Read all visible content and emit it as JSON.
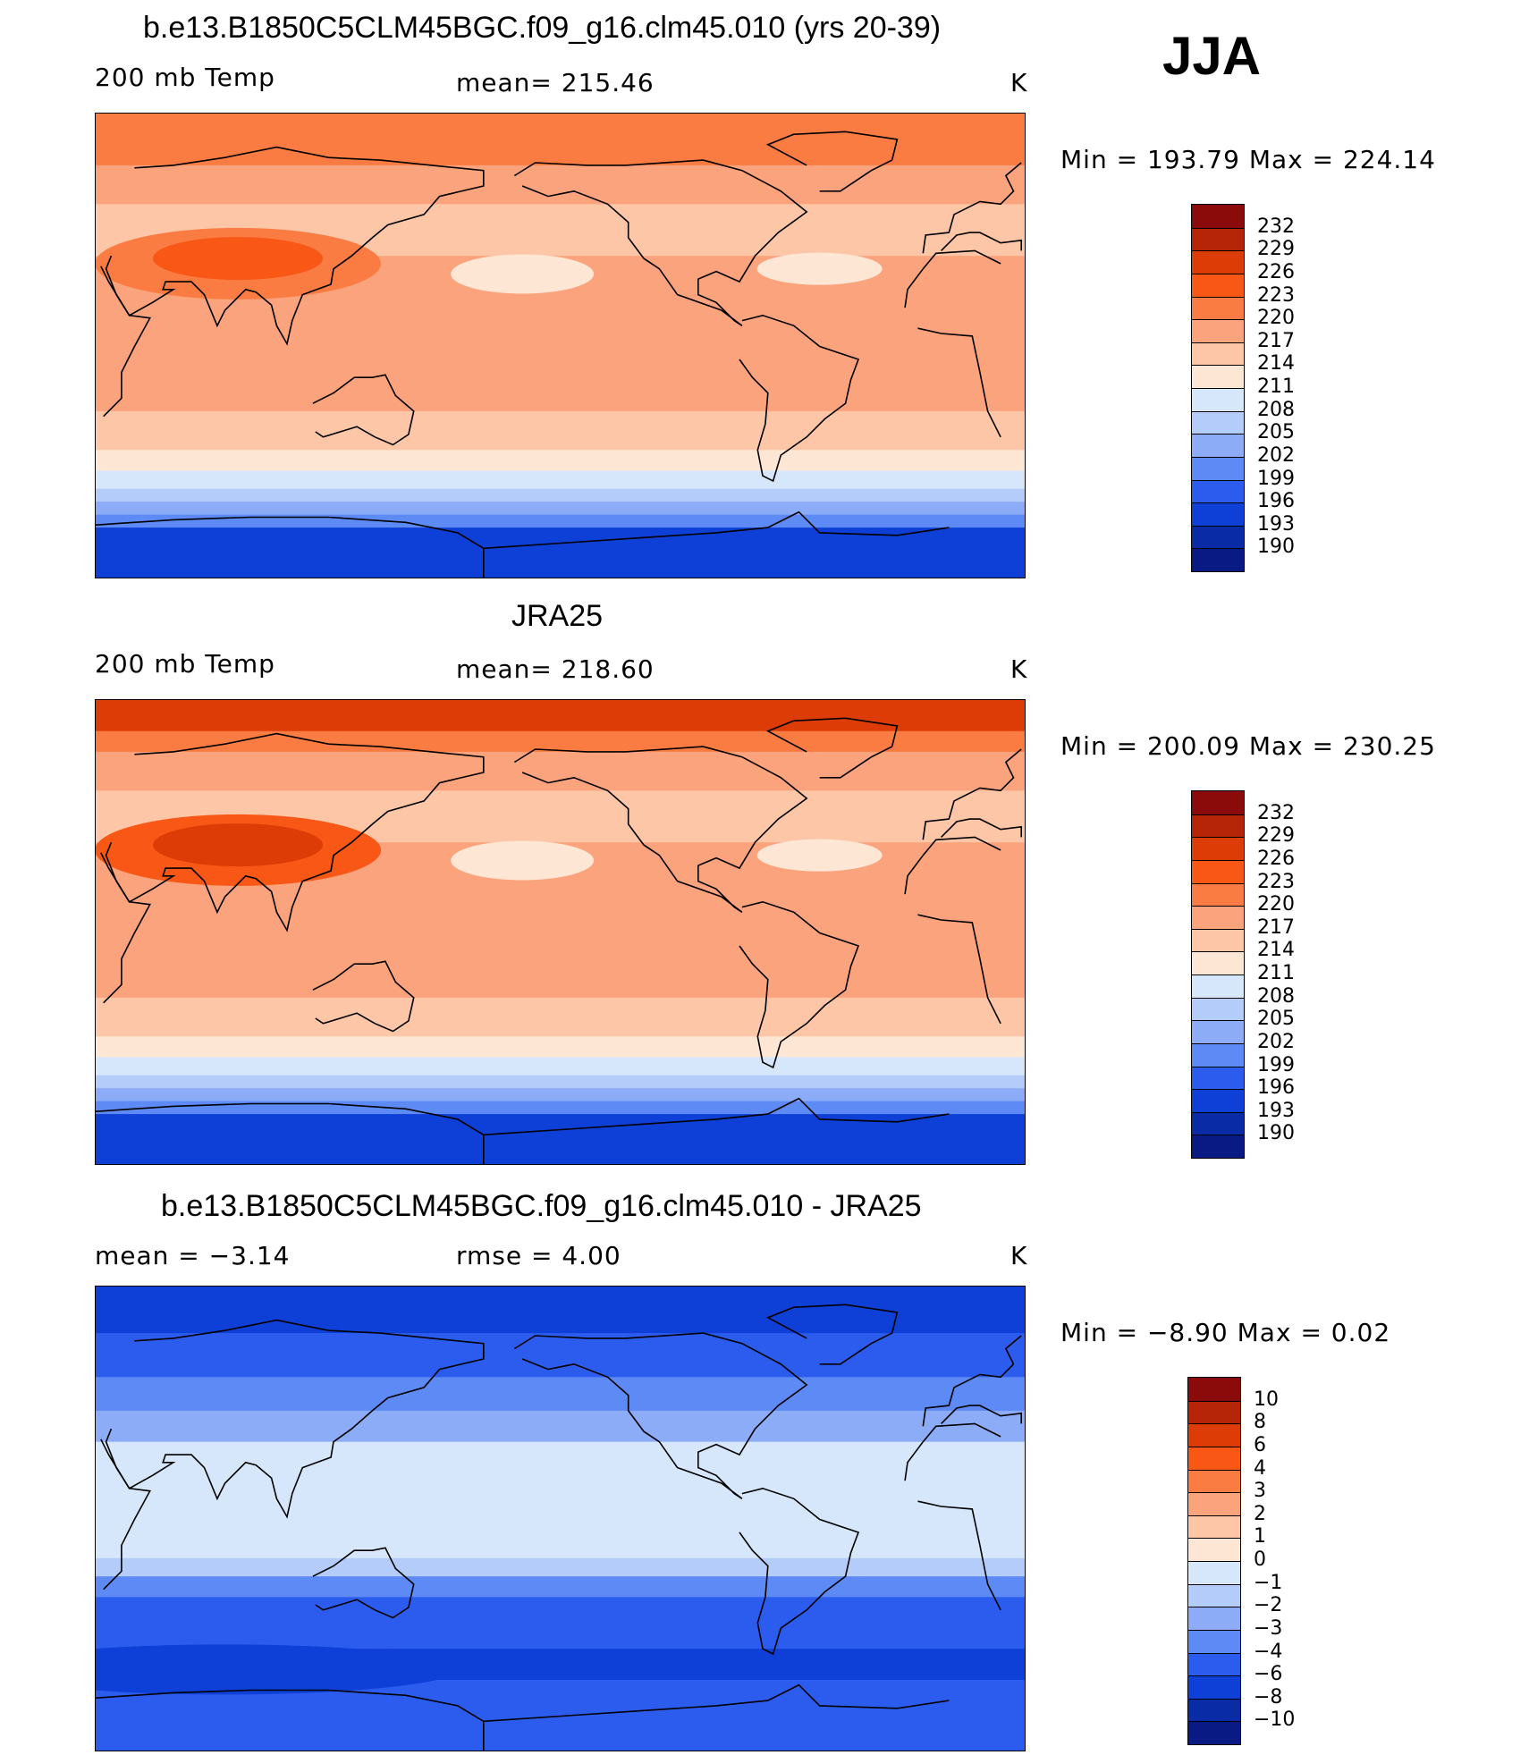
{
  "season": "JJA",
  "panels": [
    {
      "title": "b.e13.B1850C5CLM45BGC.f09_g16.clm45.010 (yrs 20-39)",
      "left_label": "200 mb Temp",
      "center_label": "mean= 215.46",
      "units": "K",
      "minmax": "Min = 193.79 Max = 224.14",
      "colorbar_labels": [
        "232",
        "229",
        "226",
        "223",
        "220",
        "217",
        "214",
        "211",
        "208",
        "205",
        "202",
        "199",
        "196",
        "193",
        "190"
      ],
      "colorbar_colors": [
        "#8b0b0b",
        "#b72508",
        "#dd3c06",
        "#f85715",
        "#fa7c42",
        "#fba37c",
        "#fcc6a7",
        "#fde6d4",
        "#d6e6fb",
        "#b4ccfa",
        "#8cacf8",
        "#5d8af4",
        "#2c5cee",
        "#0e3fd6",
        "#0a2ba6",
        "#0a1a84"
      ],
      "field_type": "temperature",
      "antarctic_shade": 0
    },
    {
      "title": "JRA25",
      "left_label": "200 mb Temp",
      "center_label": "mean= 218.60",
      "units": "K",
      "minmax": "Min = 200.09 Max = 230.25",
      "colorbar_labels": [
        "232",
        "229",
        "226",
        "223",
        "220",
        "217",
        "214",
        "211",
        "208",
        "205",
        "202",
        "199",
        "196",
        "193",
        "190"
      ],
      "colorbar_colors": [
        "#8b0b0b",
        "#b72508",
        "#dd3c06",
        "#f85715",
        "#fa7c42",
        "#fba37c",
        "#fcc6a7",
        "#fde6d4",
        "#d6e6fb",
        "#b4ccfa",
        "#8cacf8",
        "#5d8af4",
        "#2c5cee",
        "#0e3fd6",
        "#0a2ba6",
        "#0a1a84"
      ],
      "field_type": "temperature",
      "antarctic_shade": 1
    },
    {
      "title": "b.e13.B1850C5CLM45BGC.f09_g16.clm45.010 - JRA25",
      "left_label": "mean =   −3.14",
      "center_label": "rmse =    4.00",
      "units": "K",
      "minmax": "Min =   −8.90 Max =    0.02",
      "colorbar_labels": [
        "10",
        "8",
        "6",
        "4",
        "3",
        "2",
        "1",
        "0",
        "−1",
        "−2",
        "−3",
        "−4",
        "−6",
        "−8",
        "−10"
      ],
      "colorbar_colors": [
        "#8b0b0b",
        "#b72508",
        "#dd3c06",
        "#f85715",
        "#fa7c42",
        "#fba37c",
        "#fcc6a7",
        "#fde6d4",
        "#d6e6fb",
        "#b4ccfa",
        "#8cacf8",
        "#5d8af4",
        "#2c5cee",
        "#0e3fd6",
        "#0a2ba6",
        "#0a1a84"
      ],
      "field_type": "difference",
      "antarctic_shade": 0
    }
  ]
}
